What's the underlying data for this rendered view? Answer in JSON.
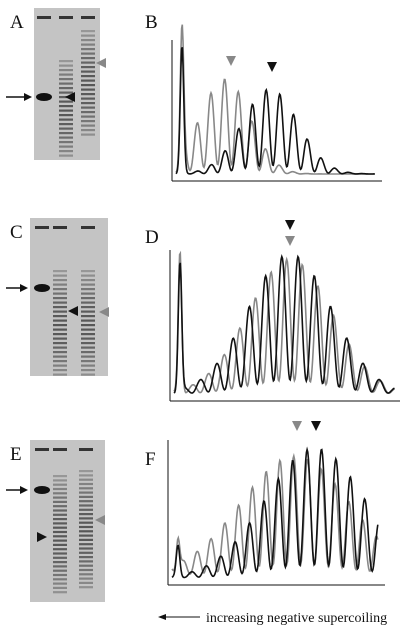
{
  "panels": [
    "A",
    "B",
    "C",
    "D",
    "E",
    "F"
  ],
  "caption": "increasing negative supercoiling"
}
